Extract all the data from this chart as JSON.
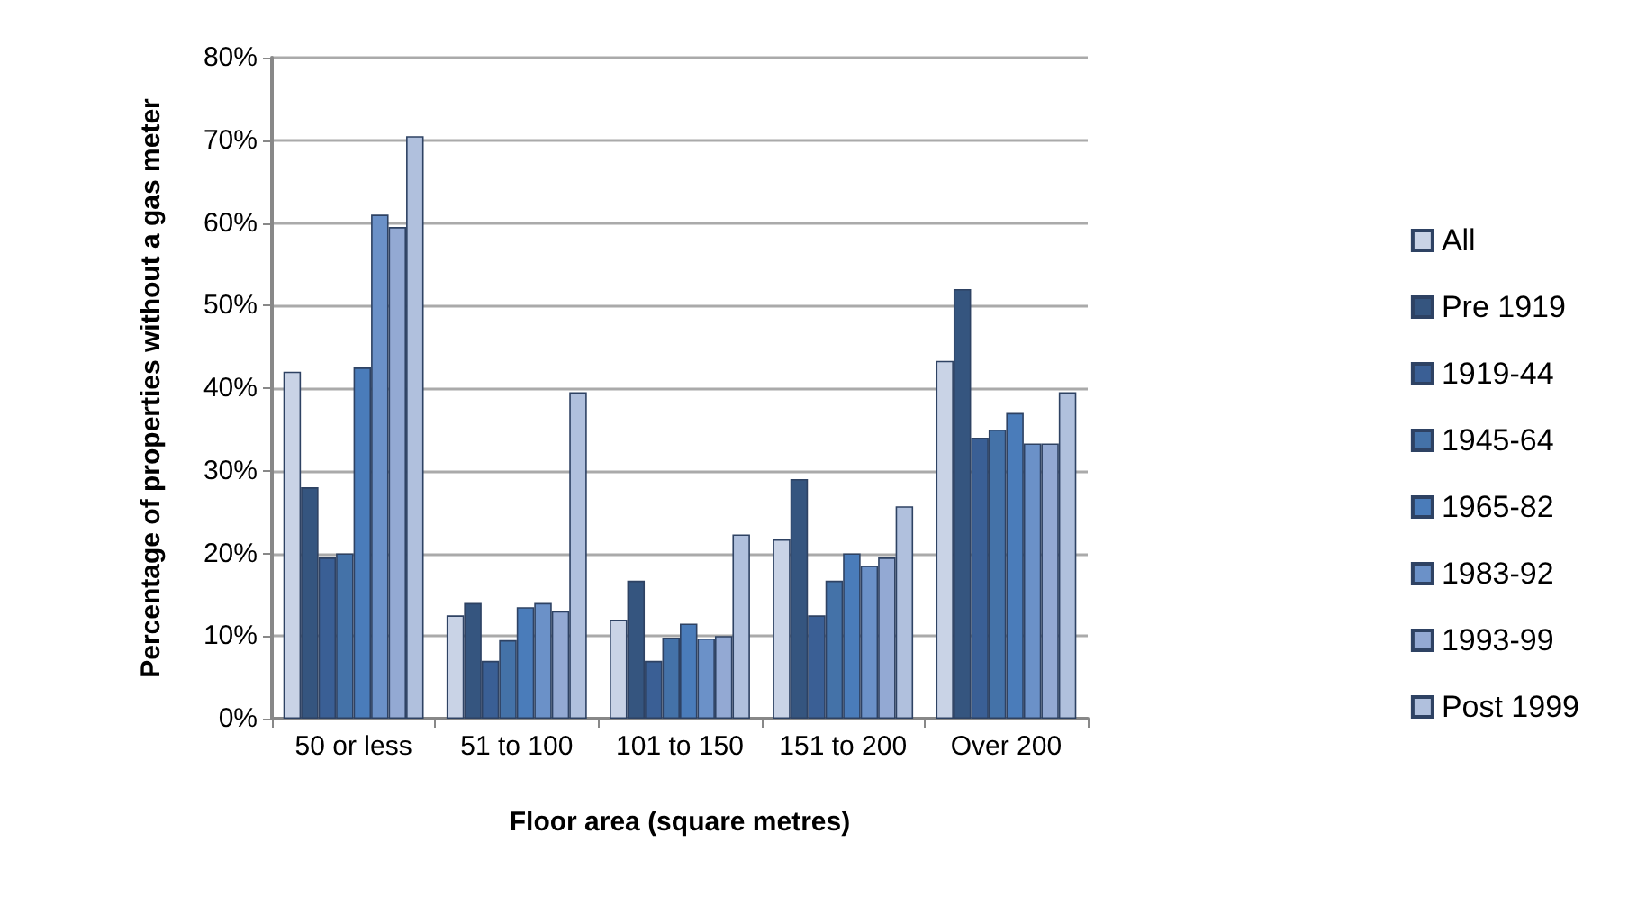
{
  "chart_data": {
    "type": "bar",
    "xlabel": "Floor area (square metres)",
    "ylabel": "Percentage of properties without a gas meter",
    "categories": [
      "50 or less",
      "51 to 100",
      "101 to 150",
      "151 to 200",
      "Over 200"
    ],
    "series": [
      {
        "name": "All",
        "color": "#c9d3e6",
        "values": [
          42,
          12.5,
          12,
          21.7,
          43.3
        ]
      },
      {
        "name": "Pre 1919",
        "color": "#35557f",
        "values": [
          28,
          14,
          16.7,
          29,
          52
        ]
      },
      {
        "name": "1919-44",
        "color": "#3a5f95",
        "values": [
          19.5,
          7,
          7,
          12.5,
          34
        ]
      },
      {
        "name": "1945-64",
        "color": "#4472a8",
        "values": [
          20,
          9.5,
          9.8,
          16.7,
          35
        ]
      },
      {
        "name": "1965-82",
        "color": "#4a7cba",
        "values": [
          42.5,
          13.5,
          11.5,
          20,
          37
        ]
      },
      {
        "name": "1983-92",
        "color": "#6b91c8",
        "values": [
          61,
          14,
          9.7,
          18.5,
          33.3
        ]
      },
      {
        "name": "1993-99",
        "color": "#93a9d3",
        "values": [
          59.5,
          13,
          10,
          19.5,
          33.3
        ]
      },
      {
        "name": "Post 1999",
        "color": "#b0c0dd",
        "values": [
          70.5,
          39.5,
          22.3,
          25.7,
          39.5
        ]
      }
    ],
    "ylim": [
      0,
      80
    ],
    "yticks": [
      {
        "value": 0,
        "label": "0%"
      },
      {
        "value": 10,
        "label": "10%"
      },
      {
        "value": 20,
        "label": "20%"
      },
      {
        "value": 30,
        "label": "30%"
      },
      {
        "value": 40,
        "label": "40%"
      },
      {
        "value": 50,
        "label": "50%"
      },
      {
        "value": 60,
        "label": "60%"
      },
      {
        "value": 70,
        "label": "70%"
      },
      {
        "value": 80,
        "label": "80%"
      }
    ],
    "grid": "y",
    "legend": "right"
  }
}
